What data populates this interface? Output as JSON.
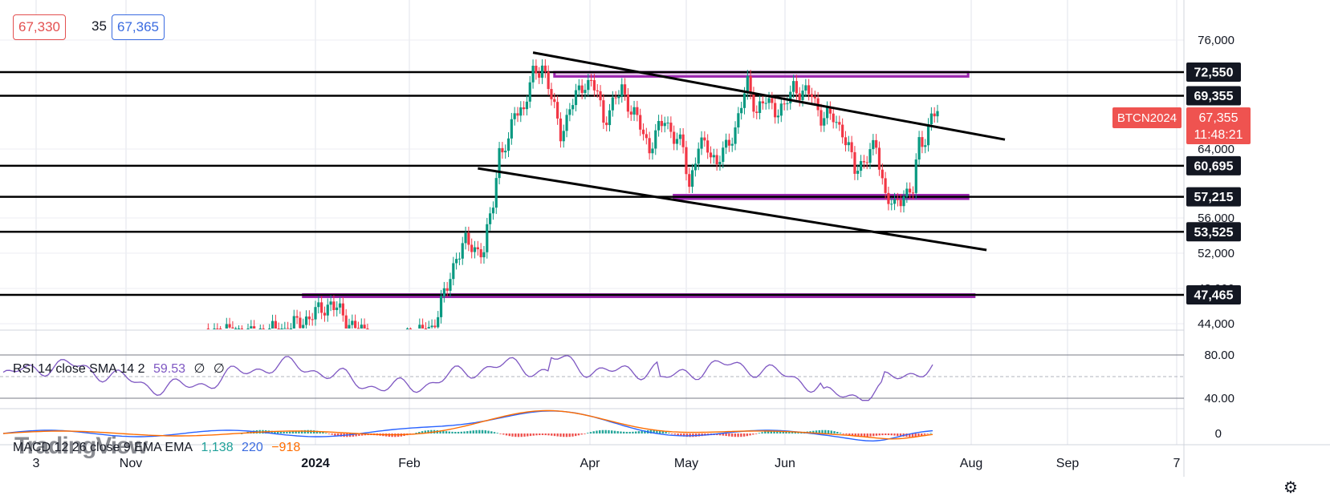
{
  "header": {
    "bid": "67,330",
    "spread": "35",
    "ask": "67,365"
  },
  "symbol_badge": {
    "symbol": "BTCN2024",
    "price": "67,355",
    "countdown": "11:48:21",
    "color": "#ef5350"
  },
  "rsi": {
    "label": "RSI 14 close SMA 14 2",
    "value": "59.53",
    "extra1": "∅",
    "extra2": "∅",
    "levels": [
      "80.00",
      "40.00"
    ]
  },
  "macd": {
    "label": "MACD 12 26 close 9 EMA EMA",
    "value1": "1,138",
    "value2": "220",
    "value3": "−918",
    "zero_label": "0"
  },
  "watermark": "TradingView",
  "colors": {
    "up": "#089981",
    "down": "#f23645",
    "channel": "#000000",
    "zone": "#9c27b0",
    "rsi": "#7e57c2",
    "macd": "#2962ff",
    "signal": "#ff6d00"
  },
  "chart_data": {
    "type": "candlestick",
    "y_ticks": [
      "76,000",
      "64,000",
      "56,000",
      "52,000",
      "48,000",
      "44,000"
    ],
    "x_ticks": [
      "3",
      "Nov",
      "2024",
      "Feb",
      "Apr",
      "May",
      "Jun",
      "Aug",
      "Sep",
      "7"
    ],
    "level_labels": [
      "72,550",
      "69,355",
      "60,695",
      "57,215",
      "53,525",
      "47,465"
    ],
    "levels": [
      72550,
      69355,
      60695,
      57215,
      53525,
      47465
    ],
    "zones": [
      {
        "from_date": "2024-03-18",
        "to_date": "2024-07-31",
        "low": 71950,
        "high": 72550
      },
      {
        "from_date": "2024-04-26",
        "to_date": "2024-07-31",
        "low": 57000,
        "high": 57400
      },
      {
        "from_date": "2023-12-27",
        "to_date": "2024-08-02",
        "low": 47300,
        "high": 47500
      }
    ],
    "trendlines": [
      {
        "from": [
          "2024-03-11",
          75300
        ],
        "to": [
          "2024-08-12",
          63800
        ]
      },
      {
        "from": [
          "2024-02-22",
          60400
        ],
        "to": [
          "2024-08-06",
          51700
        ]
      }
    ],
    "closes": [
      [
        "2023-11-25",
        43800
      ],
      [
        "2023-12-01",
        44300
      ],
      [
        "2023-12-08",
        43900
      ],
      [
        "2023-12-15",
        44200
      ],
      [
        "2023-12-22",
        44500
      ],
      [
        "2023-12-29",
        45500
      ],
      [
        "2024-01-05",
        46700
      ],
      [
        "2024-01-12",
        44800
      ],
      [
        "2024-01-19",
        43500
      ],
      [
        "2024-01-26",
        43200
      ],
      [
        "2024-02-02",
        44000
      ],
      [
        "2024-02-07",
        44600
      ],
      [
        "2024-02-12",
        48100
      ],
      [
        "2024-02-15",
        51200
      ],
      [
        "2024-02-18",
        52400
      ],
      [
        "2024-02-21",
        51900
      ],
      [
        "2024-02-24",
        51500
      ],
      [
        "2024-02-27",
        56800
      ],
      [
        "2024-02-29",
        62500
      ],
      [
        "2024-03-03",
        63000
      ],
      [
        "2024-03-05",
        67800
      ],
      [
        "2024-03-08",
        67500
      ],
      [
        "2024-03-11",
        72200
      ],
      [
        "2024-03-14",
        73600
      ],
      [
        "2024-03-17",
        68900
      ],
      [
        "2024-03-20",
        64800
      ],
      [
        "2024-03-22",
        66200
      ],
      [
        "2024-03-25",
        69500
      ],
      [
        "2024-03-28",
        71300
      ],
      [
        "2024-04-01",
        69900
      ],
      [
        "2024-04-03",
        66300
      ],
      [
        "2024-04-06",
        68000
      ],
      [
        "2024-04-09",
        70500
      ],
      [
        "2024-04-12",
        67400
      ],
      [
        "2024-04-15",
        65500
      ],
      [
        "2024-04-18",
        62800
      ],
      [
        "2024-04-20",
        64200
      ],
      [
        "2024-04-23",
        66500
      ],
      [
        "2024-04-26",
        64100
      ],
      [
        "2024-04-29",
        62700
      ],
      [
        "2024-05-01",
        58500
      ],
      [
        "2024-05-04",
        62900
      ],
      [
        "2024-05-07",
        63100
      ],
      [
        "2024-05-10",
        60900
      ],
      [
        "2024-05-13",
        62800
      ],
      [
        "2024-05-16",
        65200
      ],
      [
        "2024-05-20",
        70900
      ],
      [
        "2024-05-23",
        67500
      ],
      [
        "2024-05-26",
        68600
      ],
      [
        "2024-05-29",
        67700
      ],
      [
        "2024-06-01",
        67600
      ],
      [
        "2024-06-04",
        70700
      ],
      [
        "2024-06-07",
        69700
      ],
      [
        "2024-06-10",
        69500
      ],
      [
        "2024-06-13",
        66700
      ],
      [
        "2024-06-17",
        66500
      ],
      [
        "2024-06-20",
        64900
      ],
      [
        "2024-06-24",
        60200
      ],
      [
        "2024-06-27",
        61400
      ],
      [
        "2024-07-01",
        62900
      ],
      [
        "2024-07-04",
        57500
      ],
      [
        "2024-07-07",
        55900
      ],
      [
        "2024-07-10",
        57700
      ],
      [
        "2024-07-13",
        57900
      ],
      [
        "2024-07-15",
        63300
      ],
      [
        "2024-07-17",
        64100
      ],
      [
        "2024-07-19",
        66700
      ],
      [
        "2024-07-21",
        67355
      ]
    ]
  }
}
